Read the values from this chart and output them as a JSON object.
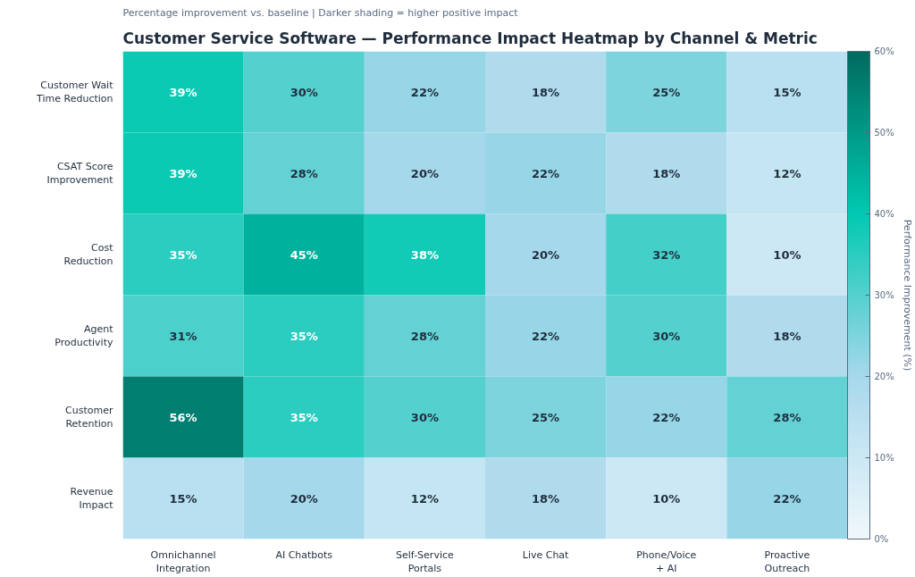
{
  "chart_data": {
    "type": "heatmap",
    "title": "Customer Service Software — Performance Impact Heatmap by Channel & Metric",
    "subtitle": "Percentage improvement vs. baseline  |  Darker shading = higher positive impact",
    "clabel": "Performance Improvement (%)",
    "categories": [
      "Omnichannel\nIntegration",
      "AI Chatbots",
      "Self-Service\nPortals",
      "Live Chat",
      "Phone/Voice\n+ AI",
      "Proactive\nOutreach"
    ],
    "y_categories": [
      "Customer Wait\nTime Reduction",
      "CSAT Score\nImprovement",
      "Cost\nReduction",
      "Agent\nProductivity",
      "Customer\nRetention",
      "Revenue\nImpact"
    ],
    "cells": [
      [
        39,
        30,
        22,
        18,
        25,
        15
      ],
      [
        39,
        28,
        20,
        22,
        18,
        12
      ],
      [
        35,
        45,
        38,
        20,
        32,
        10
      ],
      [
        31,
        35,
        28,
        22,
        30,
        18
      ],
      [
        56,
        35,
        30,
        25,
        22,
        28
      ],
      [
        15,
        20,
        12,
        18,
        10,
        22
      ]
    ],
    "cell_labels": [
      [
        "39%",
        "30%",
        "22%",
        "18%",
        "25%",
        "15%"
      ],
      [
        "39%",
        "28%",
        "20%",
        "22%",
        "18%",
        "12%"
      ],
      [
        "35%",
        "45%",
        "38%",
        "20%",
        "32%",
        "10%"
      ],
      [
        "31%",
        "35%",
        "28%",
        "22%",
        "30%",
        "18%"
      ],
      [
        "56%",
        "35%",
        "30%",
        "25%",
        "22%",
        "28%"
      ],
      [
        "15%",
        "20%",
        "12%",
        "18%",
        "10%",
        "22%"
      ]
    ],
    "clim": [
      0,
      60
    ],
    "cticks": [
      {
        "value": 0,
        "label": "0%"
      },
      {
        "value": 10,
        "label": "10%"
      },
      {
        "value": 20,
        "label": "20%"
      },
      {
        "value": 30,
        "label": "30%"
      },
      {
        "value": 40,
        "label": "40%"
      },
      {
        "value": 50,
        "label": "50%"
      },
      {
        "value": 60,
        "label": "60%"
      }
    ]
  }
}
